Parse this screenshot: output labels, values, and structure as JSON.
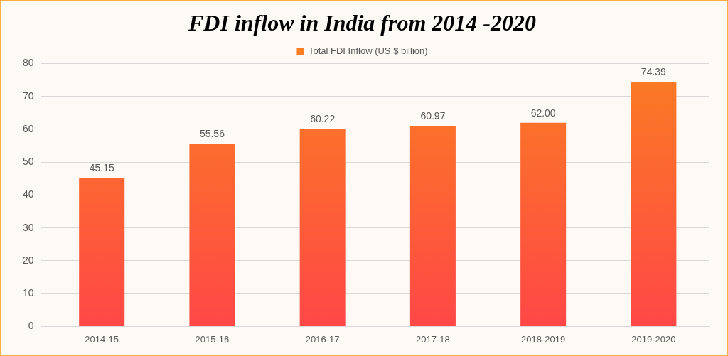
{
  "chart_data": {
    "type": "bar",
    "title": "FDI inflow in India from 2014 -2020",
    "categories": [
      "2014-15",
      "2015-16",
      "2016-17",
      "2017-18",
      "2018-2019",
      "2019-2020"
    ],
    "series": [
      {
        "name": "Total FDI Inflow (US $ billion)",
        "color": "#fa7d22",
        "values": [
          45.15,
          55.56,
          60.22,
          60.97,
          62.0,
          74.39
        ],
        "value_labels": [
          "45.15",
          "55.56",
          "60.22",
          "60.97",
          "62.00",
          "74.39"
        ]
      }
    ],
    "ylim": [
      0,
      80
    ],
    "yticks": [
      0,
      10,
      20,
      30,
      40,
      50,
      60,
      70,
      80
    ],
    "grid": true,
    "legend": "top",
    "data_labels": true
  }
}
